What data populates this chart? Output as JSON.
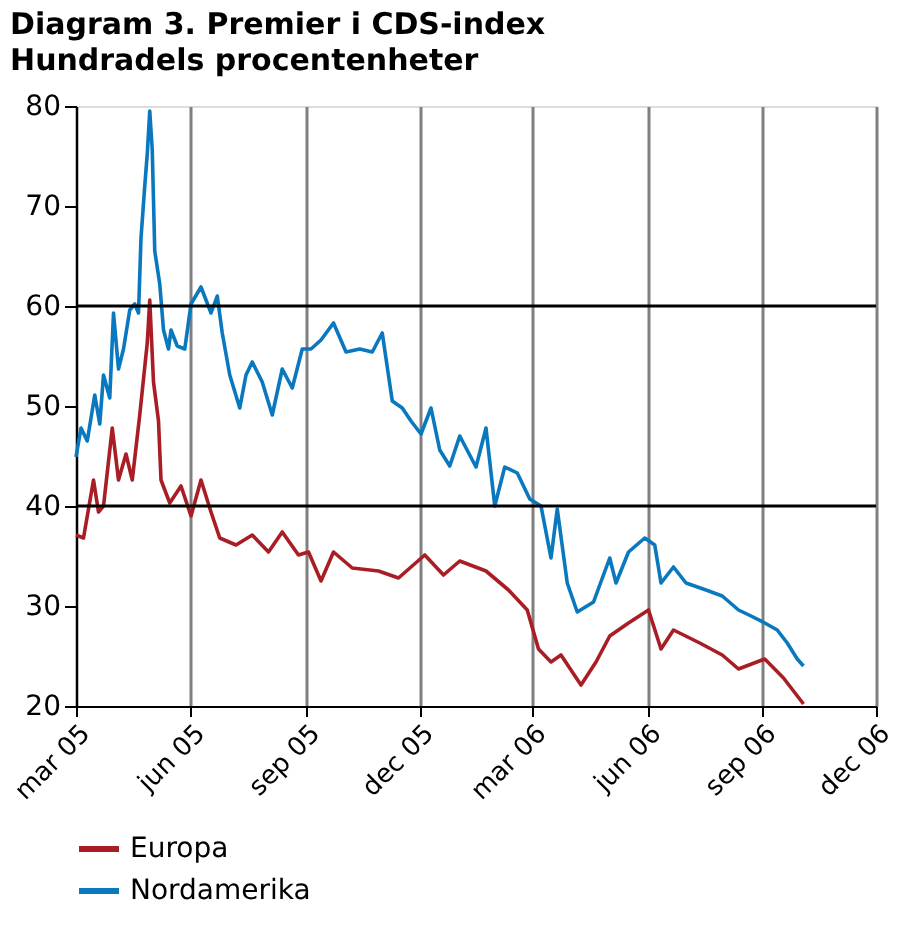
{
  "chart_data": {
    "type": "line",
    "title": "Diagram 3. Premier i CDS-index",
    "subtitle": "Hundradels procentenheter",
    "xlim": [
      "2005-03-01",
      "2006-12-01"
    ],
    "xticks": [
      {
        "value": "2005-03-01",
        "label": "mar 05"
      },
      {
        "value": "2005-06-01",
        "label": "jun 05"
      },
      {
        "value": "2005-09-01",
        "label": "sep 05"
      },
      {
        "value": "2005-12-01",
        "label": "dec 05"
      },
      {
        "value": "2006-03-01",
        "label": "mar 06"
      },
      {
        "value": "2006-06-01",
        "label": "jun 06"
      },
      {
        "value": "2006-09-01",
        "label": "sep 06"
      },
      {
        "value": "2006-12-01",
        "label": "dec 06"
      }
    ],
    "ylim": [
      20,
      80
    ],
    "yticks": [
      20,
      30,
      40,
      50,
      60,
      70,
      80
    ],
    "grid": "x",
    "legend": "bottom",
    "line_style": "solid",
    "ref_lines": [
      {
        "axis": "y",
        "value": 40,
        "color": "#000000"
      },
      {
        "axis": "y",
        "value": 60,
        "color": "#000000"
      }
    ],
    "series": [
      {
        "name": "Europa",
        "color": "#a81e24",
        "x": [
          "2005-03-01",
          "2005-03-07",
          "2005-03-15",
          "2005-03-19",
          "2005-03-23",
          "2005-03-30",
          "2005-04-04",
          "2005-04-10",
          "2005-04-15",
          "2005-04-21",
          "2005-04-27",
          "2005-04-29",
          "2005-05-02",
          "2005-05-06",
          "2005-05-08",
          "2005-05-15",
          "2005-05-24",
          "2005-06-01",
          "2005-06-09",
          "2005-06-17",
          "2005-06-24",
          "2005-07-07",
          "2005-07-20",
          "2005-08-02",
          "2005-08-13",
          "2005-08-26",
          "2005-09-03",
          "2005-09-13",
          "2005-09-23",
          "2005-10-08",
          "2005-10-29",
          "2005-11-14",
          "2005-12-05",
          "2005-12-20",
          "2006-01-02",
          "2006-01-23",
          "2006-02-10",
          "2006-02-25",
          "2006-03-06",
          "2006-03-16",
          "2006-03-24",
          "2006-04-09",
          "2006-04-21",
          "2006-05-02",
          "2006-05-17",
          "2006-06-02",
          "2006-06-12",
          "2006-06-22",
          "2006-07-13",
          "2006-07-31",
          "2006-08-13",
          "2006-09-03",
          "2006-09-18",
          "2006-10-04"
        ],
        "values": [
          37.1,
          36.8,
          42.6,
          39.4,
          40.0,
          47.8,
          42.6,
          45.2,
          42.6,
          49.1,
          56.3,
          60.6,
          52.4,
          48.5,
          42.6,
          40.3,
          42.0,
          39.0,
          42.6,
          39.4,
          36.8,
          36.1,
          37.1,
          35.4,
          37.4,
          35.1,
          35.4,
          32.5,
          35.4,
          33.8,
          33.5,
          32.8,
          35.1,
          33.1,
          34.5,
          33.5,
          31.6,
          29.6,
          25.7,
          24.4,
          25.1,
          22.1,
          24.4,
          27.0,
          28.3,
          29.6,
          25.7,
          27.6,
          26.3,
          25.1,
          23.7,
          24.7,
          22.8,
          20.2
        ]
      },
      {
        "name": "Nordamerika",
        "color": "#0a78be",
        "x": [
          "2005-03-01",
          "2005-03-05",
          "2005-03-10",
          "2005-03-16",
          "2005-03-20",
          "2005-03-23",
          "2005-03-28",
          "2005-03-31",
          "2005-04-04",
          "2005-04-08",
          "2005-04-13",
          "2005-04-17",
          "2005-04-20",
          "2005-04-22",
          "2005-04-25",
          "2005-04-27",
          "2005-04-29",
          "2005-05-01",
          "2005-05-03",
          "2005-05-07",
          "2005-05-10",
          "2005-05-14",
          "2005-05-16",
          "2005-05-21",
          "2005-05-27",
          "2005-06-01",
          "2005-06-09",
          "2005-06-17",
          "2005-06-22",
          "2005-06-26",
          "2005-07-02",
          "2005-07-10",
          "2005-07-15",
          "2005-07-20",
          "2005-07-28",
          "2005-08-05",
          "2005-08-13",
          "2005-08-21",
          "2005-08-29",
          "2005-09-05",
          "2005-09-13",
          "2005-09-23",
          "2005-10-03",
          "2005-10-14",
          "2005-10-24",
          "2005-11-01",
          "2005-11-09",
          "2005-11-17",
          "2005-11-24",
          "2005-12-02",
          "2005-12-10",
          "2005-12-17",
          "2005-12-25",
          "2006-01-02",
          "2006-01-15",
          "2006-01-23",
          "2006-01-30",
          "2006-02-07",
          "2006-02-17",
          "2006-02-27",
          "2006-03-08",
          "2006-03-16",
          "2006-03-21",
          "2006-03-29",
          "2006-04-06",
          "2006-04-19",
          "2006-05-02",
          "2006-05-07",
          "2006-05-17",
          "2006-05-30",
          "2006-06-07",
          "2006-06-12",
          "2006-06-22",
          "2006-07-02",
          "2006-07-18",
          "2006-07-31",
          "2006-08-13",
          "2006-08-23",
          "2006-09-03",
          "2006-09-13",
          "2006-09-21",
          "2006-09-29",
          "2006-10-04"
        ],
        "values": [
          44.9,
          47.8,
          46.5,
          51.1,
          48.2,
          53.1,
          50.8,
          59.3,
          53.7,
          55.7,
          59.6,
          60.2,
          59.3,
          66.8,
          72.0,
          75.2,
          79.5,
          75.6,
          65.5,
          62.2,
          57.6,
          55.7,
          57.6,
          56.0,
          55.7,
          60.2,
          61.9,
          59.3,
          61.0,
          57.3,
          53.1,
          49.8,
          53.1,
          54.4,
          52.4,
          49.1,
          53.7,
          51.8,
          55.7,
          55.7,
          56.6,
          58.3,
          55.4,
          55.7,
          55.4,
          57.3,
          50.5,
          49.8,
          48.5,
          47.2,
          49.8,
          45.6,
          44.0,
          47.0,
          43.9,
          47.8,
          40.0,
          43.9,
          43.3,
          40.7,
          40.0,
          34.8,
          39.7,
          32.3,
          29.4,
          30.4,
          34.8,
          32.3,
          35.4,
          36.8,
          36.1,
          32.3,
          33.9,
          32.3,
          31.6,
          31.0,
          29.6,
          29.0,
          28.3,
          27.6,
          26.3,
          24.7,
          24.0
        ]
      }
    ]
  }
}
